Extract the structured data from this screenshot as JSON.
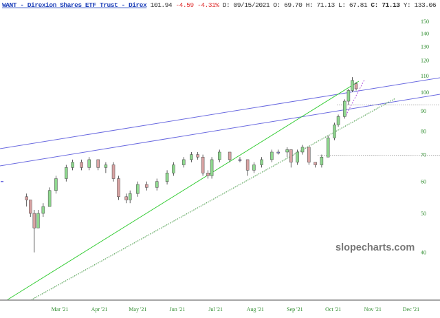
{
  "header": {
    "symbol_title": "WANT - Direxion Shares ETF Trust - Direx",
    "last": "101.94",
    "change": "-4.59",
    "change_pct": "-4.31%",
    "date_label": "D:",
    "date": "09/15/2021",
    "open_label": "O:",
    "open": "69.70",
    "high_label": "H:",
    "high": "71.13",
    "low_label": "L:",
    "low": "67.81",
    "close_label": "C:",
    "close": "71.13",
    "y_label": "Y:",
    "y": "133.06"
  },
  "watermark": "slopecharts.com",
  "colors": {
    "up": "#8fd88f",
    "down": "#d9a3a3",
    "neutral": "#8c8cdc",
    "trendline_blue": "#6a6ae0",
    "trendline_green": "#33cc33",
    "axis_text": "#2a8a2a"
  },
  "chart_data": {
    "type": "candlestick",
    "y_scale": "log",
    "ylim": [
      34,
      160
    ],
    "y_ticks": [
      40,
      50,
      60,
      70,
      80,
      90,
      100,
      110,
      120,
      130,
      140,
      150
    ],
    "x_ticks": [
      {
        "date": "2021-03-01",
        "label": "Mar '21"
      },
      {
        "date": "2021-04-01",
        "label": "Apr '21"
      },
      {
        "date": "2021-05-01",
        "label": "May '21"
      },
      {
        "date": "2021-06-01",
        "label": "Jun '21"
      },
      {
        "date": "2021-07-01",
        "label": "Jul '21"
      },
      {
        "date": "2021-08-01",
        "label": "Aug '21"
      },
      {
        "date": "2021-09-01",
        "label": "Sep '21"
      },
      {
        "date": "2021-10-01",
        "label": "Oct '21"
      },
      {
        "date": "2021-11-01",
        "label": "Nov '21"
      },
      {
        "date": "2021-12-01",
        "label": "Dec '21"
      }
    ],
    "candles": [
      [
        "2021-02-03",
        55,
        56,
        52,
        54
      ],
      [
        "2021-02-06",
        54,
        54,
        49,
        50
      ],
      [
        "2021-02-09",
        50,
        51,
        40,
        46
      ],
      [
        "2021-02-12",
        46,
        51,
        46,
        50
      ],
      [
        "2021-02-16",
        50,
        53,
        49,
        52
      ],
      [
        "2021-02-21",
        52,
        58,
        52,
        57
      ],
      [
        "2021-02-26",
        57,
        62,
        56,
        61
      ],
      [
        "2021-03-06",
        61,
        66,
        60,
        65
      ],
      [
        "2021-03-11",
        65,
        68,
        64,
        67
      ],
      [
        "2021-03-18",
        67,
        68,
        64,
        65
      ],
      [
        "2021-03-24",
        65,
        69,
        64,
        68
      ],
      [
        "2021-03-31",
        68,
        68,
        64,
        65
      ],
      [
        "2021-04-06",
        65,
        67,
        63,
        66
      ],
      [
        "2021-04-12",
        66,
        67,
        60,
        61
      ],
      [
        "2021-04-16",
        61,
        62,
        54,
        55
      ],
      [
        "2021-04-22",
        55,
        56,
        53,
        54
      ],
      [
        "2021-04-25",
        54,
        57,
        53,
        56
      ],
      [
        "2021-05-01",
        56,
        60,
        55,
        59
      ],
      [
        "2021-05-08",
        59,
        60,
        57,
        58
      ],
      [
        "2021-05-16",
        58,
        61,
        57,
        60
      ],
      [
        "2021-05-24",
        60,
        64,
        59,
        63
      ],
      [
        "2021-05-29",
        63,
        67,
        62,
        66
      ],
      [
        "2021-06-06",
        66,
        69,
        65,
        68
      ],
      [
        "2021-06-12",
        68,
        71,
        67,
        70
      ],
      [
        "2021-06-17",
        70,
        71,
        68,
        69
      ],
      [
        "2021-06-21",
        69,
        70,
        62,
        63
      ],
      [
        "2021-06-25",
        63,
        64,
        61,
        62
      ],
      [
        "2021-06-28",
        62,
        69,
        61,
        68
      ],
      [
        "2021-07-04",
        68,
        72,
        67,
        71
      ],
      [
        "2021-07-12",
        71,
        71,
        67,
        68
      ],
      [
        "2021-07-20",
        68,
        69,
        67,
        68
      ],
      [
        "2021-07-26",
        68,
        68,
        62,
        64
      ],
      [
        "2021-07-31",
        64,
        67,
        63,
        66
      ],
      [
        "2021-08-06",
        66,
        69,
        65,
        68
      ],
      [
        "2021-08-14",
        68,
        72,
        67,
        71
      ],
      [
        "2021-08-19",
        71,
        72,
        70,
        71
      ],
      [
        "2021-08-26",
        71,
        73,
        69,
        72
      ],
      [
        "2021-08-29",
        72,
        72,
        65,
        67
      ],
      [
        "2021-09-03",
        67,
        72,
        66,
        71
      ],
      [
        "2021-09-07",
        71,
        74,
        70,
        73
      ],
      [
        "2021-09-12",
        73,
        73,
        66,
        67
      ],
      [
        "2021-09-17",
        67,
        67,
        65,
        66
      ],
      [
        "2021-09-22",
        66,
        70,
        65,
        69
      ],
      [
        "2021-09-27",
        69,
        78,
        69,
        77
      ],
      [
        "2021-10-02",
        77,
        84,
        76,
        83
      ],
      [
        "2021-10-05",
        83,
        88,
        82,
        87
      ],
      [
        "2021-10-10",
        87,
        96,
        86,
        95
      ],
      [
        "2021-10-13",
        95,
        102,
        93,
        101
      ],
      [
        "2021-10-16",
        101,
        109,
        100,
        107
      ],
      [
        "2021-10-19",
        105,
        106,
        101,
        102
      ]
    ],
    "horizontal_levels": [
      93,
      69.7
    ]
  }
}
